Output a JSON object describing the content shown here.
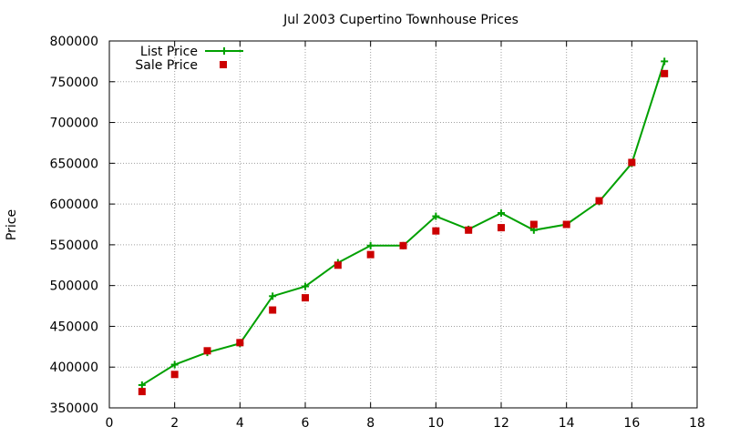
{
  "colors": {
    "list_price": "#00a000",
    "sale_price": "#cc0000",
    "grid": "#a0a0a0",
    "axis": "#000000"
  },
  "chart_data": {
    "type": "line",
    "title": "Jul 2003 Cupertino Townhouse Prices",
    "xlabel": "",
    "ylabel": "Price",
    "xlim": [
      0,
      18
    ],
    "ylim": [
      350000,
      800000
    ],
    "x_ticks": [
      0,
      2,
      4,
      6,
      8,
      10,
      12,
      14,
      16,
      18
    ],
    "y_ticks": [
      350000,
      400000,
      450000,
      500000,
      550000,
      600000,
      650000,
      700000,
      750000,
      800000
    ],
    "grid": true,
    "legend_position": "top-left",
    "x": [
      1,
      2,
      3,
      4,
      5,
      6,
      7,
      8,
      9,
      10,
      11,
      12,
      13,
      14,
      15,
      16,
      17
    ],
    "series": [
      {
        "name": "List Price",
        "style": "line-with-plus-markers",
        "values": [
          378000,
          403000,
          418000,
          429000,
          487000,
          499000,
          528000,
          549000,
          549000,
          585000,
          569000,
          589000,
          568000,
          575000,
          603000,
          650000,
          775000
        ]
      },
      {
        "name": "Sale Price",
        "style": "square-markers",
        "values": [
          370000,
          391000,
          420000,
          430000,
          470000,
          485000,
          525000,
          538000,
          549000,
          567000,
          568000,
          571000,
          575000,
          575000,
          604000,
          651000,
          760000
        ]
      }
    ]
  }
}
